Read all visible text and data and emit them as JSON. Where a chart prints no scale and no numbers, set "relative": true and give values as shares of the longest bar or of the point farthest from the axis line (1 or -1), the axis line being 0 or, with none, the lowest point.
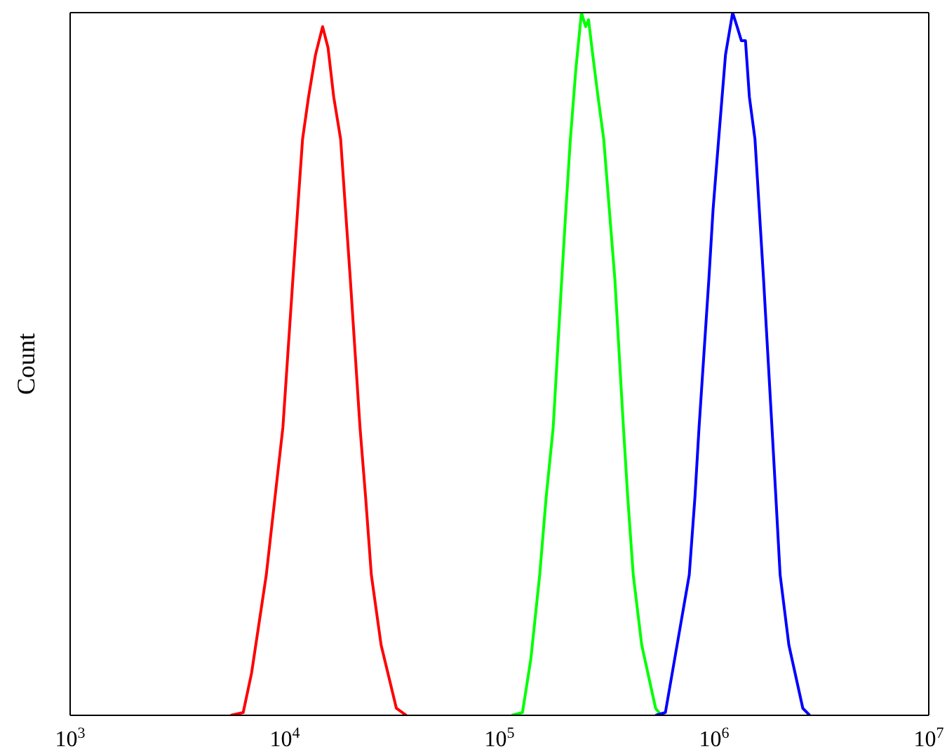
{
  "chart_data": {
    "type": "line",
    "ylabel": "Count",
    "relative": true,
    "log": "x",
    "marker": "none",
    "xlim": [
      1000,
      10000000
    ],
    "xticks": [
      {
        "value": 1000,
        "label": "10$^{3}$"
      },
      {
        "value": 10000,
        "label": "10$^{4}$"
      },
      {
        "value": 100000,
        "label": "10$^{5}$"
      },
      {
        "value": 1000000,
        "label": "10$^{6}$"
      },
      {
        "value": 10000000,
        "label": "10$^{7}$"
      }
    ],
    "series": [
      {
        "color": "#ff0000",
        "x": [
          5600,
          6400,
          7000,
          8200,
          9000,
          9800,
          10900,
          11600,
          12100,
          12900,
          13900,
          15000,
          15900,
          16900,
          18200,
          20200,
          22400,
          23800,
          25300,
          28100,
          33100,
          36800
        ],
        "values": [
          0,
          0.004,
          0.06,
          0.2,
          0.31,
          0.41,
          0.62,
          0.74,
          0.82,
          0.88,
          0.94,
          0.98,
          0.95,
          0.88,
          0.82,
          0.62,
          0.41,
          0.31,
          0.2,
          0.1,
          0.01,
          0
        ]
      },
      {
        "color": "#00ff00",
        "x": [
          114000,
          128000,
          140000,
          154000,
          165000,
          178000,
          195000,
          204000,
          214000,
          227000,
          241000,
          252000,
          260000,
          272000,
          288000,
          306000,
          345000,
          378000,
          396000,
          420000,
          460000,
          534000,
          567000
        ],
        "values": [
          0,
          0.004,
          0.08,
          0.2,
          0.31,
          0.41,
          0.62,
          0.72,
          0.82,
          0.92,
          1,
          0.98,
          0.99,
          0.94,
          0.88,
          0.82,
          0.62,
          0.41,
          0.31,
          0.2,
          0.1,
          0.01,
          0
        ]
      },
      {
        "color": "#0000ff",
        "x": [
          534000,
          593000,
          690000,
          766000,
          814000,
          851000,
          945000,
          989000,
          1050000,
          1130000,
          1220000,
          1280000,
          1340000,
          1400000,
          1460000,
          1550000,
          1700000,
          1860000,
          1940000,
          2030000,
          2230000,
          2590000,
          2790000
        ],
        "values": [
          0,
          0.004,
          0.12,
          0.2,
          0.31,
          0.41,
          0.62,
          0.72,
          0.82,
          0.94,
          1,
          0.98,
          0.96,
          0.96,
          0.88,
          0.82,
          0.62,
          0.41,
          0.31,
          0.2,
          0.1,
          0.01,
          0
        ]
      }
    ]
  }
}
